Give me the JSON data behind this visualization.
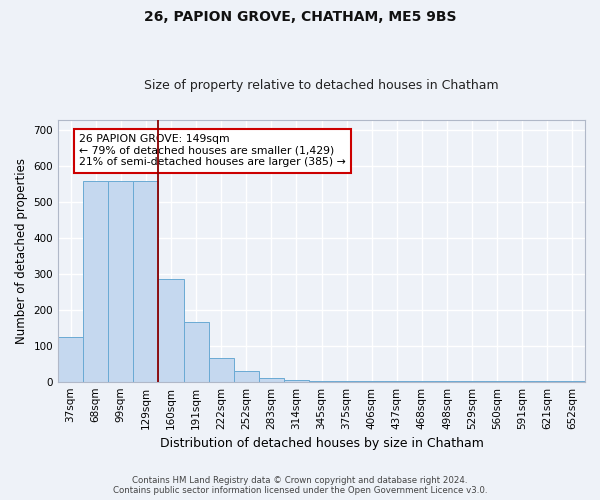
{
  "title": "26, PAPION GROVE, CHATHAM, ME5 9BS",
  "subtitle": "Size of property relative to detached houses in Chatham",
  "xlabel": "Distribution of detached houses by size in Chatham",
  "ylabel": "Number of detached properties",
  "bar_labels": [
    "37sqm",
    "68sqm",
    "99sqm",
    "129sqm",
    "160sqm",
    "191sqm",
    "222sqm",
    "252sqm",
    "283sqm",
    "314sqm",
    "345sqm",
    "375sqm",
    "406sqm",
    "437sqm",
    "468sqm",
    "498sqm",
    "529sqm",
    "560sqm",
    "591sqm",
    "621sqm",
    "652sqm"
  ],
  "bar_values": [
    125,
    560,
    560,
    560,
    285,
    165,
    65,
    30,
    10,
    5,
    3,
    3,
    3,
    3,
    2,
    2,
    2,
    2,
    2,
    2,
    3
  ],
  "bar_color": "#c5d8ef",
  "bar_edge_color": "#6aaad4",
  "annotation_text": "26 PAPION GROVE: 149sqm\n← 79% of detached houses are smaller (1,429)\n21% of semi-detached houses are larger (385) →",
  "annotation_box_color": "#ffffff",
  "annotation_box_edge_color": "#cc0000",
  "vline_x": 3.5,
  "vline_color": "#8b0000",
  "ylim": [
    0,
    730
  ],
  "yticks": [
    0,
    100,
    200,
    300,
    400,
    500,
    600,
    700
  ],
  "footer_line1": "Contains HM Land Registry data © Crown copyright and database right 2024.",
  "footer_line2": "Contains public sector information licensed under the Open Government Licence v3.0.",
  "background_color": "#eef2f8",
  "grid_color": "#ffffff",
  "title_fontsize": 10,
  "subtitle_fontsize": 9,
  "tick_fontsize": 7.5,
  "ylabel_fontsize": 8.5,
  "xlabel_fontsize": 9
}
